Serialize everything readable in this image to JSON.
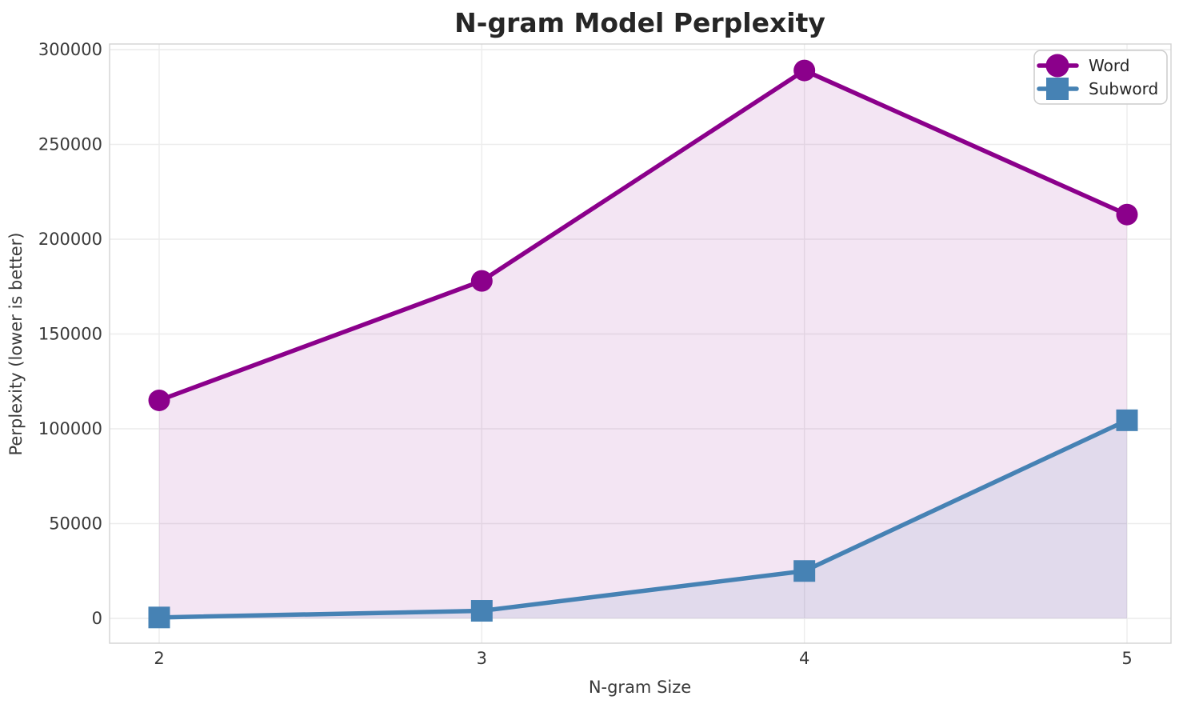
{
  "chart_data": {
    "type": "line",
    "title": "N-gram Model Perplexity",
    "xlabel": "N-gram Size",
    "ylabel": "Perplexity (lower is better)",
    "x": [
      2,
      3,
      4,
      5
    ],
    "series": [
      {
        "name": "Word",
        "marker": "circle",
        "color": "#8B008B",
        "values": [
          115000,
          178000,
          289000,
          213000
        ]
      },
      {
        "name": "Subword",
        "marker": "square",
        "color": "#4682B4",
        "values": [
          500,
          4000,
          25000,
          104500
        ]
      }
    ],
    "xlim": [
      2,
      5
    ],
    "ylim": [
      0,
      300000
    ],
    "xticks": [
      2,
      3,
      4,
      5
    ],
    "yticks": [
      0,
      50000,
      100000,
      150000,
      200000,
      250000,
      300000
    ],
    "grid": true,
    "fill_to_zero": true,
    "fill_alpha": 0.1,
    "legend_position": "upper right"
  },
  "colors": {
    "background": "#FFFFFF",
    "grid": "#ECECEC",
    "spine": "#D2D2D2",
    "tick_text": "#3A3A3A",
    "title_text": "#262626",
    "legend_border": "#CCCCCC",
    "legend_background": "#FFFFFF"
  }
}
